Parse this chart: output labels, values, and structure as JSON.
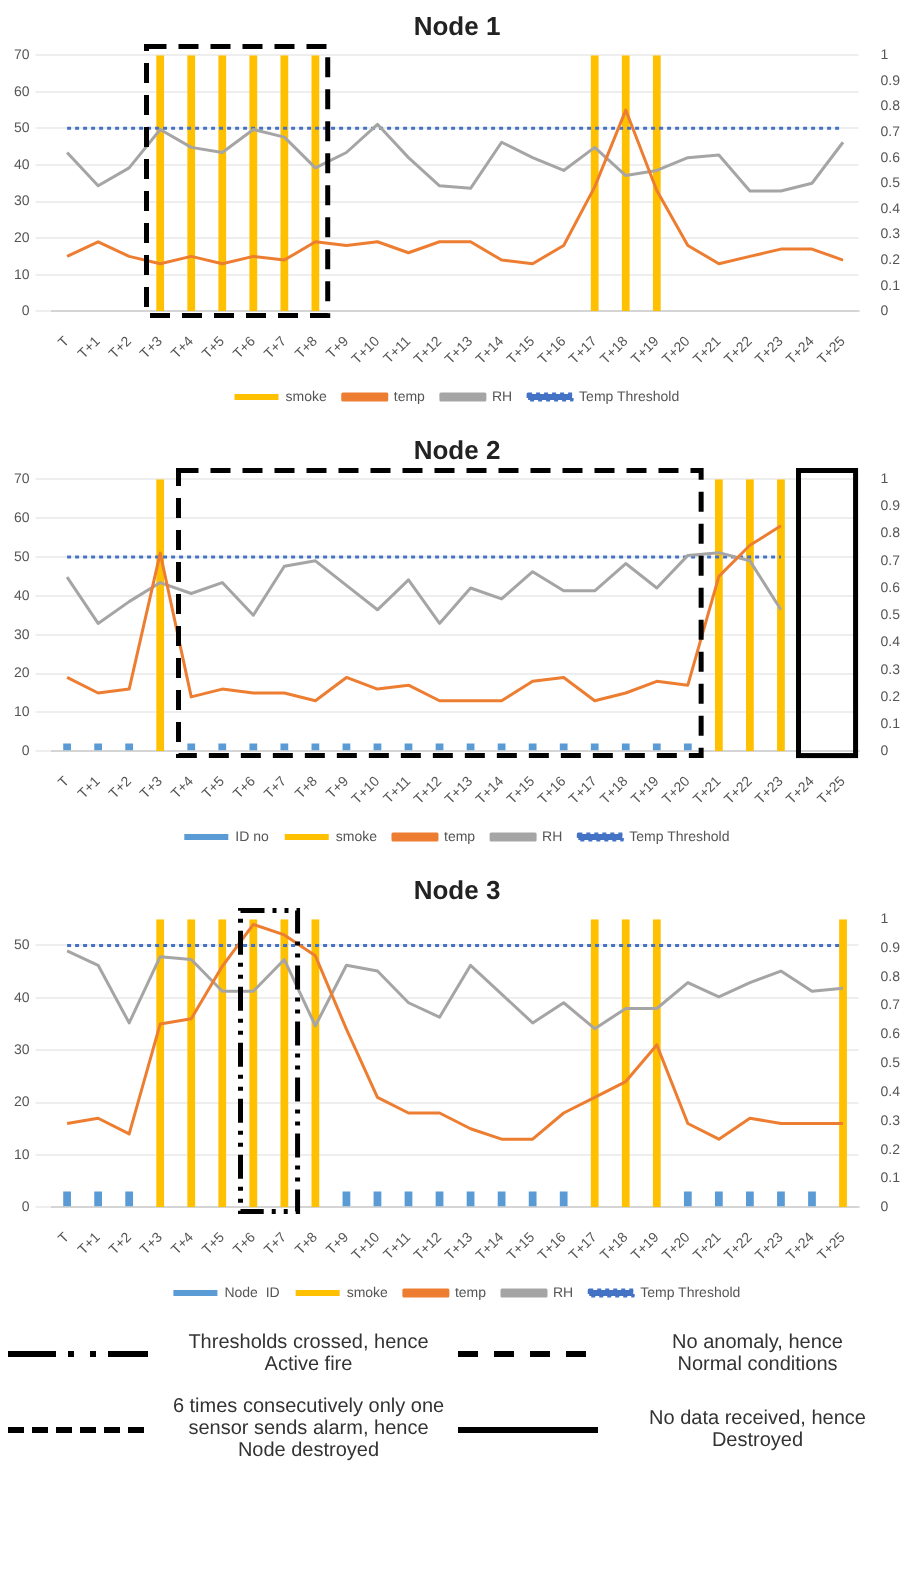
{
  "chart_data": [
    {
      "type": "bar",
      "title": "Node 1",
      "categories": [
        "T",
        "T+1",
        "T+2",
        "T+3",
        "T+4",
        "T+5",
        "T+6",
        "T+7",
        "T+8",
        "T+9",
        "T+10",
        "T+11",
        "T+12",
        "T+13",
        "T+14",
        "T+15",
        "T+16",
        "T+17",
        "T+18",
        "T+19",
        "T+20",
        "T+21",
        "T+22",
        "T+23",
        "T+24",
        "T+25"
      ],
      "series": [
        {
          "name": "smoke",
          "axis": "y2",
          "color": "#ffc000",
          "values": [
            0,
            0,
            0,
            1,
            1,
            1,
            1,
            1,
            1,
            0,
            0,
            0,
            0,
            0,
            0,
            0,
            0,
            1,
            1,
            1,
            0,
            0,
            0,
            0,
            0,
            0
          ]
        },
        {
          "name": "temp",
          "type": "line",
          "color": "#ed7d31",
          "values": [
            15,
            19,
            15,
            13,
            15,
            13,
            15,
            14,
            19,
            18,
            19,
            16,
            19,
            19,
            14,
            13,
            18,
            34,
            55,
            33,
            18,
            13,
            15,
            17,
            17,
            14
          ]
        },
        {
          "name": "RH",
          "type": "line",
          "axis": "y2",
          "color": "#a5a5a5",
          "values": [
            0.62,
            0.49,
            0.56,
            0.71,
            0.64,
            0.62,
            0.71,
            0.68,
            0.56,
            0.62,
            0.73,
            0.6,
            0.49,
            0.48,
            0.66,
            0.6,
            0.55,
            0.64,
            0.53,
            0.55,
            0.6,
            0.61,
            0.47,
            0.47,
            0.5,
            0.66
          ]
        },
        {
          "name": "Temp Threshold",
          "type": "line",
          "line_style": "dotted",
          "color": "#4472c4",
          "values": [
            50,
            50,
            50,
            50,
            50,
            50,
            50,
            50,
            50,
            50,
            50,
            50,
            50,
            50,
            50,
            50,
            50,
            50,
            50,
            50,
            50,
            50,
            50,
            50,
            50,
            50
          ]
        }
      ],
      "ylim": [
        0,
        70
      ],
      "yticks": [
        0,
        10,
        20,
        30,
        40,
        50,
        60,
        70
      ],
      "y2lim": [
        0,
        1
      ],
      "y2ticks": [
        0,
        0.1,
        0.2,
        0.3,
        0.4,
        0.5,
        0.6,
        0.7,
        0.8,
        0.9,
        1
      ],
      "grid": "y",
      "legend": "bottom",
      "marker": "none"
    },
    {
      "type": "bar",
      "title": "Node 2",
      "categories": [
        "T",
        "T+1",
        "T+2",
        "T+3",
        "T+4",
        "T+5",
        "T+6",
        "T+7",
        "T+8",
        "T+9",
        "T+10",
        "T+11",
        "T+12",
        "T+13",
        "T+14",
        "T+15",
        "T+16",
        "T+17",
        "T+18",
        "T+19",
        "T+20",
        "T+21",
        "T+22",
        "T+23",
        "T+24",
        "T+25"
      ],
      "series": [
        {
          "name": "ID no",
          "color": "#5b9bd5",
          "values": [
            2,
            2,
            2,
            null,
            2,
            2,
            2,
            2,
            2,
            2,
            2,
            2,
            2,
            2,
            2,
            2,
            2,
            2,
            2,
            2,
            2,
            null,
            null,
            null,
            null,
            null
          ]
        },
        {
          "name": "smoke",
          "axis": "y2",
          "color": "#ffc000",
          "values": [
            0,
            0,
            0,
            1,
            0,
            0,
            0,
            0,
            0,
            0,
            0,
            0,
            0,
            0,
            0,
            0,
            0,
            0,
            0,
            0,
            0,
            1,
            1,
            1,
            null,
            null
          ]
        },
        {
          "name": "temp",
          "type": "line",
          "color": "#ed7d31",
          "values": [
            19,
            15,
            16,
            51,
            14,
            16,
            15,
            15,
            13,
            19,
            16,
            17,
            13,
            13,
            13,
            18,
            19,
            13,
            15,
            18,
            17,
            45,
            53,
            58,
            null,
            null
          ]
        },
        {
          "name": "RH",
          "type": "line",
          "axis": "y2",
          "color": "#a5a5a5",
          "values": [
            0.64,
            0.47,
            0.55,
            0.62,
            0.58,
            0.62,
            0.5,
            0.68,
            0.7,
            0.61,
            0.52,
            0.63,
            0.47,
            0.6,
            0.56,
            0.66,
            0.59,
            0.59,
            0.69,
            0.6,
            0.72,
            0.73,
            0.7,
            0.52,
            null,
            null
          ]
        },
        {
          "name": "Temp Threshold",
          "type": "line",
          "line_style": "dotted",
          "color": "#4472c4",
          "values": [
            50,
            50,
            50,
            50,
            50,
            50,
            50,
            50,
            50,
            50,
            50,
            50,
            50,
            50,
            50,
            50,
            50,
            50,
            50,
            50,
            50,
            50,
            50,
            50,
            null,
            null
          ]
        }
      ],
      "ylim": [
        0,
        70
      ],
      "yticks": [
        0,
        10,
        20,
        30,
        40,
        50,
        60,
        70
      ],
      "y2lim": [
        0,
        1
      ],
      "y2ticks": [
        0,
        0.1,
        0.2,
        0.3,
        0.4,
        0.5,
        0.6,
        0.7,
        0.8,
        0.9,
        1
      ],
      "grid": "y",
      "legend": "bottom",
      "marker": "none"
    },
    {
      "type": "bar",
      "title": "Node 3",
      "categories": [
        "T",
        "T+1",
        "T+2",
        "T+3",
        "T+4",
        "T+5",
        "T+6",
        "T+7",
        "T+8",
        "T+9",
        "T+10",
        "T+11",
        "T+12",
        "T+13",
        "T+14",
        "T+15",
        "T+16",
        "T+17",
        "T+18",
        "T+19",
        "T+20",
        "T+21",
        "T+22",
        "T+23",
        "T+24",
        "T+25"
      ],
      "series": [
        {
          "name": "Node  ID",
          "color": "#5b9bd5",
          "values": [
            3,
            3,
            3,
            null,
            null,
            null,
            null,
            null,
            null,
            3,
            3,
            3,
            3,
            3,
            3,
            3,
            3,
            null,
            null,
            null,
            3,
            3,
            3,
            3,
            3,
            null
          ]
        },
        {
          "name": "smoke",
          "axis": "y2",
          "color": "#ffc000",
          "values": [
            0,
            0,
            0,
            1,
            1,
            1,
            1,
            1,
            1,
            0,
            0,
            0,
            0,
            0,
            0,
            0,
            0,
            1,
            1,
            1,
            0,
            0,
            0,
            0,
            0,
            1
          ]
        },
        {
          "name": "temp",
          "type": "line",
          "color": "#ed7d31",
          "values": [
            16,
            17,
            14,
            35,
            36,
            46,
            54,
            52,
            48,
            34,
            21,
            18,
            18,
            15,
            13,
            13,
            18,
            21,
            24,
            31,
            16,
            13,
            17,
            16,
            16,
            16
          ]
        },
        {
          "name": "RH",
          "type": "line",
          "axis": "y2",
          "color": "#a5a5a5",
          "values": [
            0.89,
            0.84,
            0.64,
            0.87,
            0.86,
            0.75,
            0.75,
            0.86,
            0.63,
            0.84,
            0.82,
            0.71,
            0.66,
            0.84,
            0.74,
            0.64,
            0.71,
            0.62,
            0.69,
            0.69,
            0.78,
            0.73,
            0.78,
            0.82,
            0.75,
            0.76
          ]
        },
        {
          "name": "Temp Threshold",
          "type": "line",
          "line_style": "dotted",
          "color": "#4472c4",
          "values": [
            50,
            50,
            50,
            50,
            50,
            50,
            50,
            50,
            50,
            50,
            50,
            50,
            50,
            50,
            50,
            50,
            50,
            50,
            50,
            50,
            50,
            50,
            50,
            50,
            50,
            50
          ]
        }
      ],
      "ylim": [
        0,
        55
      ],
      "yticks": [
        0,
        10,
        20,
        30,
        40,
        50
      ],
      "y2lim": [
        0,
        1
      ],
      "y2ticks": [
        0,
        0.1,
        0.2,
        0.3,
        0.4,
        0.5,
        0.6,
        0.7,
        0.8,
        0.9,
        1
      ],
      "grid": "y",
      "legend": "bottom",
      "marker": "none",
      "annotations": [
        "Thresholds crossed, hence\nActive fire",
        "No anomaly, hence\nNormal conditions",
        "6 times consecutively only one\nsensor sends alarm, hence\nNode destroyed",
        "No data received, hence\nDestroyed"
      ]
    }
  ]
}
